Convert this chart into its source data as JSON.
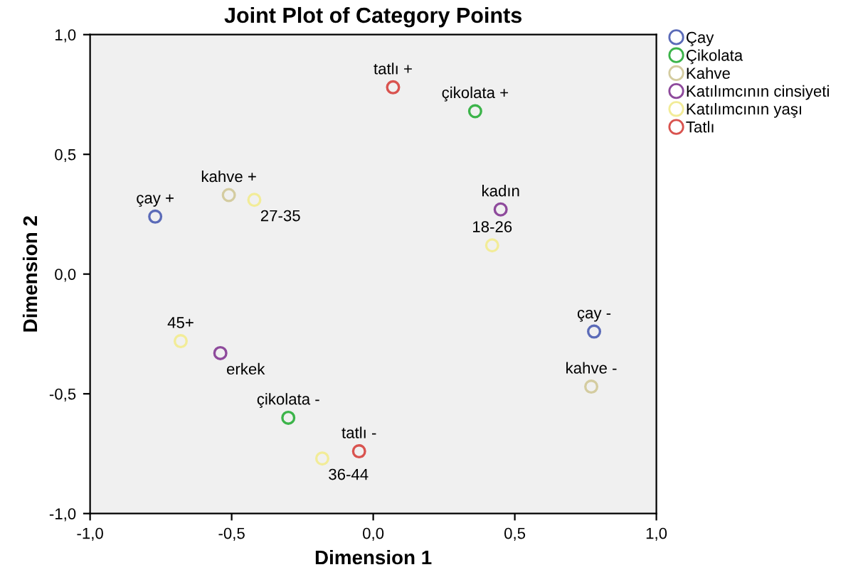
{
  "chart_data": {
    "type": "scatter",
    "title": "Joint Plot of Category Points",
    "xlabel": "Dimension 1",
    "ylabel": "Dimension 2",
    "xlim": [
      -1.0,
      1.0
    ],
    "ylim": [
      -1.0,
      1.0
    ],
    "xticks": [
      {
        "value": -1.0,
        "label": "-1,0"
      },
      {
        "value": -0.5,
        "label": "-0,5"
      },
      {
        "value": 0.0,
        "label": "0,0"
      },
      {
        "value": 0.5,
        "label": "0,5"
      },
      {
        "value": 1.0,
        "label": "1,0"
      }
    ],
    "yticks": [
      {
        "value": -1.0,
        "label": "-1,0"
      },
      {
        "value": -0.5,
        "label": "-0,5"
      },
      {
        "value": 0.0,
        "label": "0,0"
      },
      {
        "value": 0.5,
        "label": "0,5"
      },
      {
        "value": 1.0,
        "label": "1,0"
      }
    ],
    "marker": "circle",
    "grid": false,
    "legend": "top right",
    "series": [
      {
        "name": "Çay",
        "color": "#5b6bb8",
        "x": [
          -0.77,
          0.78
        ],
        "values": [
          0.24,
          -0.24
        ]
      },
      {
        "name": "Çikolata",
        "color": "#3cb44a",
        "x": [
          0.36,
          -0.3
        ],
        "values": [
          0.68,
          -0.6
        ]
      },
      {
        "name": "Kahve",
        "color": "#d4cca0",
        "x": [
          -0.51,
          0.77
        ],
        "values": [
          0.33,
          -0.47
        ]
      },
      {
        "name": "Katılımcının cinsiyeti",
        "color": "#8e4a9c",
        "x": [
          0.45,
          -0.54
        ],
        "values": [
          0.27,
          -0.33
        ]
      },
      {
        "name": "Katılımcının yaşı",
        "color": "#f2ec98",
        "x": [
          0.42,
          -0.42,
          -0.18,
          -0.68
        ],
        "values": [
          0.12,
          0.31,
          -0.77,
          -0.28
        ]
      },
      {
        "name": "Tatlı",
        "color": "#d9534f",
        "x": [
          0.07,
          -0.05
        ],
        "values": [
          0.78,
          -0.74
        ]
      }
    ],
    "annotations": [
      {
        "text": "çay +",
        "x": -0.77,
        "y": 0.24
      },
      {
        "text": "çay -",
        "x": 0.78,
        "y": -0.24
      },
      {
        "text": "çikolata +",
        "x": 0.36,
        "y": 0.68
      },
      {
        "text": "çikolata -",
        "x": -0.3,
        "y": -0.6
      },
      {
        "text": "kahve +",
        "x": -0.51,
        "y": 0.33
      },
      {
        "text": "kahve -",
        "x": 0.77,
        "y": -0.47
      },
      {
        "text": "kadın",
        "x": 0.45,
        "y": 0.27
      },
      {
        "text": "erkek",
        "x": -0.54,
        "y": -0.33
      },
      {
        "text": "18-26",
        "x": 0.42,
        "y": 0.12
      },
      {
        "text": "27-35",
        "x": -0.42,
        "y": 0.31
      },
      {
        "text": "36-44",
        "x": -0.18,
        "y": -0.77
      },
      {
        "text": "45+",
        "x": -0.68,
        "y": -0.28
      },
      {
        "text": "tatlı +",
        "x": 0.07,
        "y": 0.78
      },
      {
        "text": "tatlı -",
        "x": -0.05,
        "y": -0.74
      }
    ]
  }
}
